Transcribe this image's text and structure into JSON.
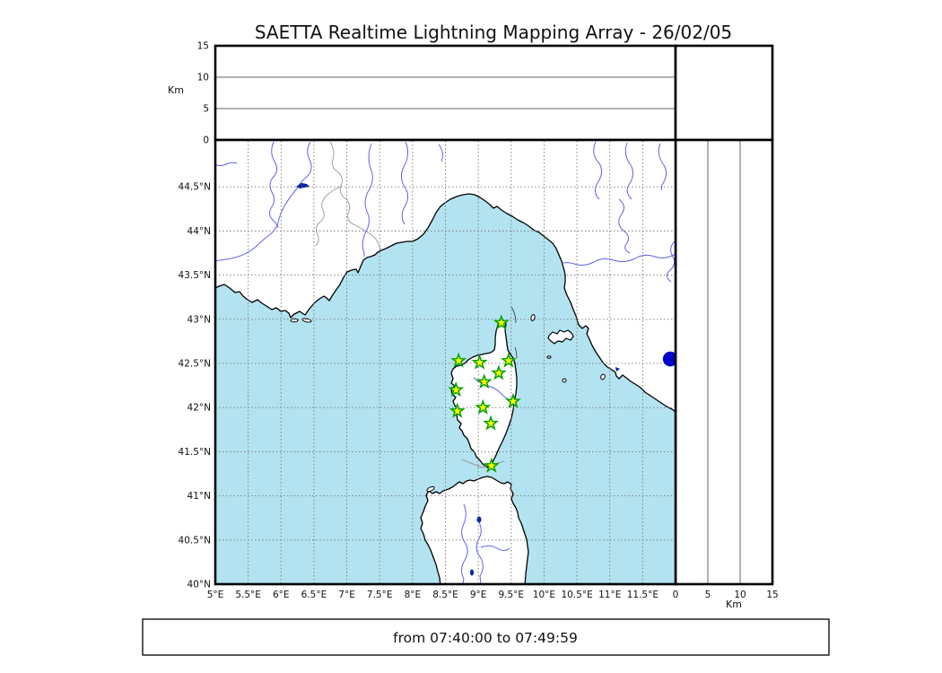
{
  "title": "SAETTA Realtime Lightning Mapping Array - 26/02/05",
  "footer": "from 07:40:00 to 07:49:59",
  "axes": {
    "altitude_label": "Km",
    "altitude_ticks": [
      {
        "v": 0,
        "l": "0"
      },
      {
        "v": 5,
        "l": "5"
      },
      {
        "v": 10,
        "l": "10"
      },
      {
        "v": 15,
        "l": "15"
      }
    ],
    "altitude_range_km": [
      0,
      15
    ],
    "lon_ticks": [
      {
        "v": 5,
        "l": "5°E"
      },
      {
        "v": 5.5,
        "l": "5.5°E"
      },
      {
        "v": 6,
        "l": "6°E"
      },
      {
        "v": 6.5,
        "l": "6.5°E"
      },
      {
        "v": 7,
        "l": "7°E"
      },
      {
        "v": 7.5,
        "l": "7.5°E"
      },
      {
        "v": 8,
        "l": "8°E"
      },
      {
        "v": 8.5,
        "l": "8.5°E"
      },
      {
        "v": 9,
        "l": "9°E"
      },
      {
        "v": 9.5,
        "l": "9.5°E"
      },
      {
        "v": 10,
        "l": "10°E"
      },
      {
        "v": 10.5,
        "l": "10.5°E"
      },
      {
        "v": 11,
        "l": "11°E"
      },
      {
        "v": 11.5,
        "l": "11.5°E"
      }
    ],
    "lat_ticks": [
      {
        "v": 40,
        "l": "40°N"
      },
      {
        "v": 40.5,
        "l": "40.5°N"
      },
      {
        "v": 41,
        "l": "41°N"
      },
      {
        "v": 41.5,
        "l": "41.5°N"
      },
      {
        "v": 42,
        "l": "42°N"
      },
      {
        "v": 42.5,
        "l": "42.5°N"
      },
      {
        "v": 43,
        "l": "43°N"
      },
      {
        "v": 43.5,
        "l": "43.5°N"
      },
      {
        "v": 44,
        "l": "44°N"
      },
      {
        "v": 44.5,
        "l": "44.5°N"
      }
    ],
    "lon_range": [
      5.0,
      12.0
    ],
    "lat_range": [
      40.0,
      45.02
    ]
  },
  "colors": {
    "sea": "#b3e3f0",
    "land": "#ffffff",
    "coast": "#000000",
    "river": "#6161ef",
    "border": "#999999",
    "grid": "#777777",
    "panel_grid": "#666666",
    "lake": "#0022aa",
    "station_fill": "#ffff00",
    "station_stroke": "#00a000",
    "event": "#0000cc"
  },
  "stations": [
    {
      "lon": 9.35,
      "lat": 42.96
    },
    {
      "lon": 8.7,
      "lat": 42.53
    },
    {
      "lon": 9.02,
      "lat": 42.51
    },
    {
      "lon": 9.46,
      "lat": 42.53
    },
    {
      "lon": 9.31,
      "lat": 42.39
    },
    {
      "lon": 9.09,
      "lat": 42.29
    },
    {
      "lon": 8.66,
      "lat": 42.2
    },
    {
      "lon": 9.53,
      "lat": 42.07
    },
    {
      "lon": 9.07,
      "lat": 42.0
    },
    {
      "lon": 8.68,
      "lat": 41.96
    },
    {
      "lon": 9.19,
      "lat": 41.82
    },
    {
      "lon": 9.2,
      "lat": 41.34
    }
  ],
  "events": [
    {
      "lon": 11.92,
      "lat": 42.55
    }
  ]
}
